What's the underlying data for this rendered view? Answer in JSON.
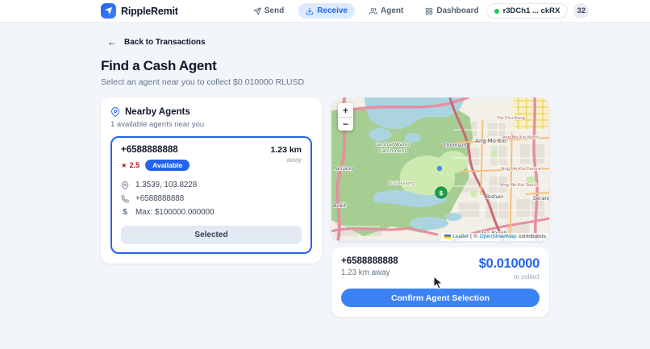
{
  "colors": {
    "accent": "#2563eb",
    "confirm_button": "#3b82f6",
    "active_tab_bg": "#dbeafe",
    "status_dot_green": "#22c55e",
    "star_red": "#b91c1c",
    "agent_marker_green": "#16a34a"
  },
  "brand": {
    "name": "RippleRemit"
  },
  "nav": {
    "items": [
      {
        "label": "Send"
      },
      {
        "label": "Receive"
      },
      {
        "label": "Agent"
      },
      {
        "label": "Dashboard"
      }
    ],
    "wallet_address": "r3DCh1 ... ckRX",
    "badge_count": "32"
  },
  "page": {
    "back_arrow": "←",
    "back_label": "Back to Transactions",
    "title": "Find a Cash Agent",
    "subtitle": "Select an agent near you to collect $0.010000 RLUSD"
  },
  "nearby": {
    "title": "Nearby Agents",
    "subtitle": "1 available agents near you",
    "agent": {
      "phone": "+6588888888",
      "star": "★",
      "rating": "2.5",
      "status": "Available",
      "distance": "1.23 km",
      "distance_caption": "away",
      "coordinates": "1.3539, 103.8228",
      "contact_phone": "+6588888888",
      "dollar_sign": "$",
      "max_amount": "Max: $100000.000000",
      "selected_label": "Selected"
    }
  },
  "map": {
    "zoom_in": "+",
    "zoom_out": "−",
    "marker_glyph": "$",
    "labels": [
      {
        "id": "central-water-1",
        "text": "Central Water"
      },
      {
        "id": "central-water-2",
        "text": "Catchment"
      },
      {
        "id": "thomson",
        "text": "Thomson"
      },
      {
        "id": "ang-mo-kio",
        "text": "Ang Mo Kio"
      },
      {
        "id": "amk-north",
        "text": "Ang Mo Kio North"
      },
      {
        "id": "yio-chu-kang",
        "text": "Yio Chu Kang"
      },
      {
        "id": "amk-central",
        "text": "Ang Mo Kio Central"
      },
      {
        "id": "amk-south",
        "text": "Ang Mo Kio South"
      },
      {
        "id": "bishan",
        "text": "Bishan"
      },
      {
        "id": "serangoon",
        "text": "Serangoon"
      },
      {
        "id": "toa-payoh",
        "text": "Toa Payoh"
      },
      {
        "id": "panjang",
        "text": "Panjang"
      },
      {
        "id": "bukit",
        "text": "Bukit"
      },
      {
        "id": "bukit-kalang",
        "text": "Bukit Kalang"
      }
    ],
    "attribution": {
      "leaflet": "Leaflet",
      "divider": "|",
      "copyright": "©",
      "osm": "OpenStreetMap",
      "suffix": "contributors"
    }
  },
  "summary": {
    "phone": "+6588888888",
    "distance": "1.23 km away",
    "amount": "$0.010000",
    "amount_caption": "to collect",
    "confirm_label": "Confirm Agent Selection"
  }
}
